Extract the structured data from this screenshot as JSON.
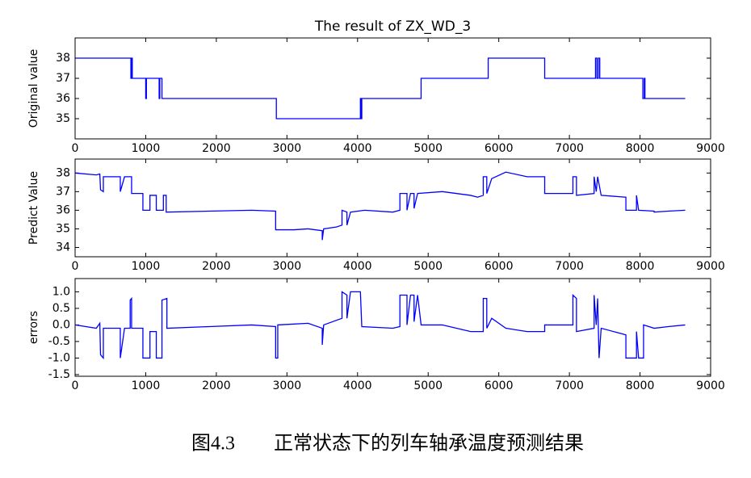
{
  "caption": "图4.3　　正常状态下的列车轴承温度预测结果",
  "chart_data": [
    {
      "type": "line",
      "title": "The result of ZX_WD_3",
      "ylabel": "Original value",
      "color": "#0000ff",
      "xlim": [
        0,
        9000
      ],
      "xticks": [
        0,
        1000,
        2000,
        3000,
        4000,
        5000,
        6000,
        7000,
        8000,
        9000
      ],
      "ylim": [
        34,
        39
      ],
      "yticks": [
        35,
        36,
        37,
        38
      ],
      "x": [
        0,
        790,
        790,
        800,
        800,
        810,
        810,
        1000,
        1000,
        1010,
        1010,
        1190,
        1190,
        1200,
        1200,
        1230,
        1230,
        2850,
        2850,
        4040,
        4040,
        4050,
        4050,
        4060,
        4060,
        4900,
        4900,
        5850,
        5850,
        6650,
        6650,
        7370,
        7370,
        7390,
        7390,
        7410,
        7410,
        7430,
        7430,
        8040,
        8040,
        8060,
        8060,
        8070,
        8070,
        8640
      ],
      "values": [
        38,
        38,
        37,
        37,
        38,
        38,
        37,
        37,
        36,
        36,
        37,
        37,
        36,
        36,
        37,
        37,
        36,
        36,
        35,
        35,
        36,
        36,
        35,
        35,
        36,
        36,
        37,
        37,
        38,
        38,
        37,
        37,
        38,
        38,
        37,
        37,
        38,
        38,
        37,
        37,
        36,
        36,
        37,
        37,
        36,
        36
      ]
    },
    {
      "type": "line",
      "ylabel": "Predict Value",
      "color": "#0000ff",
      "xlim": [
        0,
        9000
      ],
      "xticks": [
        0,
        1000,
        2000,
        3000,
        4000,
        5000,
        6000,
        7000,
        8000,
        9000
      ],
      "ylim": [
        33.5,
        38.75
      ],
      "yticks": [
        34,
        35,
        36,
        37,
        38
      ],
      "x": [
        0,
        300,
        350,
        360,
        400,
        400,
        640,
        640,
        700,
        800,
        800,
        960,
        960,
        1060,
        1060,
        1150,
        1150,
        1250,
        1250,
        1290,
        1290,
        1900,
        2500,
        2840,
        2840,
        3100,
        3300,
        3500,
        3500,
        3520,
        3700,
        3780,
        3780,
        3850,
        3850,
        3900,
        4100,
        4500,
        4600,
        4600,
        4700,
        4700,
        4750,
        4800,
        4800,
        4850,
        5200,
        5600,
        5700,
        5780,
        5780,
        5830,
        5830,
        5900,
        6100,
        6400,
        6650,
        6650,
        7050,
        7050,
        7100,
        7100,
        7350,
        7350,
        7380,
        7400,
        7450,
        7800,
        7800,
        7950,
        7950,
        7980,
        8200,
        8200,
        8400,
        8640
      ],
      "values": [
        38,
        37.9,
        37.95,
        37.1,
        37.0,
        37.8,
        37.8,
        37.0,
        37.8,
        37.8,
        36.9,
        36.9,
        36.0,
        36.0,
        36.8,
        36.8,
        36.0,
        36.0,
        36.8,
        36.8,
        35.9,
        35.95,
        36.0,
        35.95,
        34.95,
        34.95,
        35.0,
        34.9,
        34.4,
        35.0,
        35.1,
        35.2,
        36.0,
        35.9,
        35.2,
        35.9,
        36.0,
        35.9,
        36.0,
        36.9,
        36.9,
        36.0,
        36.9,
        36.9,
        36.1,
        36.9,
        37.0,
        36.8,
        36.7,
        36.8,
        37.8,
        37.8,
        36.9,
        37.7,
        38.05,
        37.8,
        37.8,
        36.9,
        36.9,
        37.8,
        37.8,
        36.8,
        36.9,
        37.8,
        37.0,
        37.8,
        36.8,
        36.7,
        36.0,
        36.0,
        36.8,
        36.0,
        35.95,
        35.9,
        35.95,
        36.0
      ]
    },
    {
      "type": "line",
      "ylabel": "errors",
      "color": "#0000ff",
      "xlim": [
        0,
        9000
      ],
      "xticks": [
        0,
        1000,
        2000,
        3000,
        4000,
        5000,
        6000,
        7000,
        8000,
        9000
      ],
      "ylim": [
        -1.55,
        1.4
      ],
      "yticks": [
        -1.5,
        {
          "value": -1,
          "label": "-1.0"
        },
        -0.5,
        {
          "value": 0,
          "label": "0.0"
        },
        0.5,
        {
          "value": 1,
          "label": "1.0"
        }
      ],
      "x": [
        0,
        300,
        350,
        360,
        400,
        400,
        640,
        640,
        700,
        780,
        780,
        800,
        800,
        960,
        960,
        1060,
        1060,
        1150,
        1150,
        1230,
        1230,
        1300,
        1300,
        1900,
        2500,
        2840,
        2840,
        2870,
        2870,
        3300,
        3500,
        3500,
        3520,
        3780,
        3780,
        3850,
        3850,
        3900,
        4040,
        4060,
        4500,
        4600,
        4600,
        4700,
        4700,
        4750,
        4800,
        4800,
        4850,
        4900,
        5200,
        5600,
        5780,
        5780,
        5830,
        5830,
        5900,
        6100,
        6400,
        6650,
        6650,
        7050,
        7050,
        7100,
        7100,
        7350,
        7350,
        7380,
        7400,
        7420,
        7450,
        7800,
        7800,
        7950,
        7950,
        7980,
        8050,
        8050,
        8200,
        8400,
        8640
      ],
      "values": [
        0,
        -0.1,
        0.05,
        -0.9,
        -1.0,
        -0.1,
        -0.1,
        -1.0,
        -0.1,
        -0.1,
        0.75,
        0.8,
        -0.1,
        -0.1,
        -1.0,
        -1.0,
        -0.2,
        -0.2,
        -1.0,
        -1.0,
        0.75,
        0.8,
        -0.1,
        -0.05,
        0,
        -0.05,
        -1.0,
        -1.0,
        0,
        0.05,
        -0.1,
        -0.6,
        0,
        0.2,
        1.0,
        0.9,
        0.2,
        1.0,
        1.0,
        -0.05,
        -0.1,
        -0.05,
        0.9,
        0.9,
        0,
        0.9,
        0.9,
        0.1,
        0.9,
        0,
        0,
        -0.2,
        -0.2,
        0.8,
        0.8,
        -0.1,
        0.2,
        -0.1,
        -0.2,
        -0.2,
        0,
        0,
        0.9,
        0.8,
        -0.2,
        -0.1,
        0.9,
        0,
        0.8,
        -1.0,
        -0.1,
        -0.3,
        -1.0,
        -1.0,
        -0.2,
        -1.0,
        -1.0,
        0,
        -0.1,
        -0.05,
        0
      ]
    }
  ]
}
